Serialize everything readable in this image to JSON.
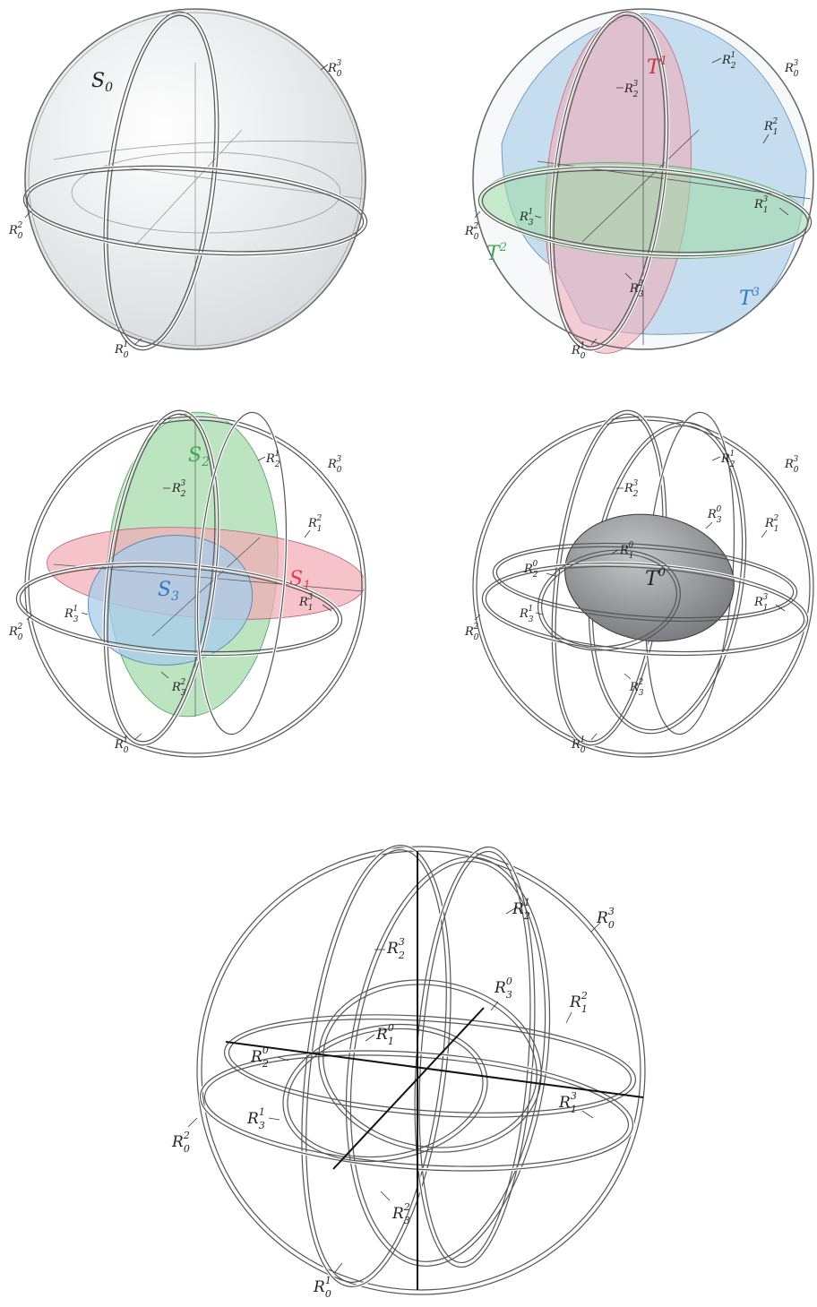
{
  "colors": {
    "red": "#d6404f",
    "green": "#3fa84f",
    "blue": "#2e78c4",
    "sphere_fill": "#e8eaec",
    "dark_ellipsoid": "#8a8d90"
  },
  "panel1": {
    "sphere": {
      "base": "S",
      "sub": "0"
    },
    "labels": [
      {
        "base": "R",
        "sub": "0",
        "sup": "3"
      },
      {
        "base": "R",
        "sub": "0",
        "sup": "2"
      },
      {
        "base": "R",
        "sub": "0",
        "sup": "1"
      }
    ]
  },
  "panel2": {
    "regions": [
      {
        "base": "T",
        "sup": "1"
      },
      {
        "base": "T",
        "sup": "2"
      },
      {
        "base": "T",
        "sup": "3"
      }
    ],
    "labels": [
      {
        "base": "R",
        "sub": "2",
        "sup": "1"
      },
      {
        "base": "R",
        "sub": "0",
        "sup": "3"
      },
      {
        "base": "R",
        "sub": "2",
        "sup": "3"
      },
      {
        "base": "R",
        "sub": "1",
        "sup": "2"
      },
      {
        "base": "R",
        "sub": "1",
        "sup": "3"
      },
      {
        "base": "R",
        "sub": "3",
        "sup": "1"
      },
      {
        "base": "R",
        "sub": "0",
        "sup": "2"
      },
      {
        "base": "R",
        "sub": "3",
        "sup": "2"
      },
      {
        "base": "R",
        "sub": "0",
        "sup": "1"
      }
    ]
  },
  "panel3": {
    "regions": [
      {
        "base": "S",
        "sub": "2"
      },
      {
        "base": "S",
        "sub": "3"
      },
      {
        "base": "S",
        "sub": "1"
      }
    ],
    "labels": [
      {
        "base": "R",
        "sub": "2",
        "sup": "1"
      },
      {
        "base": "R",
        "sub": "0",
        "sup": "3"
      },
      {
        "base": "R",
        "sub": "2",
        "sup": "3"
      },
      {
        "base": "R",
        "sub": "1",
        "sup": "2"
      },
      {
        "base": "R",
        "sub": "1",
        "sup": "3"
      },
      {
        "base": "R",
        "sub": "3",
        "sup": "1"
      },
      {
        "base": "R",
        "sub": "0",
        "sup": "2"
      },
      {
        "base": "R",
        "sub": "3",
        "sup": "2"
      },
      {
        "base": "R",
        "sub": "0",
        "sup": "1"
      }
    ]
  },
  "panel4": {
    "region": {
      "base": "T",
      "sup": "0"
    },
    "labels": [
      {
        "base": "R",
        "sub": "2",
        "sup": "1"
      },
      {
        "base": "R",
        "sub": "0",
        "sup": "3"
      },
      {
        "base": "R",
        "sub": "2",
        "sup": "3"
      },
      {
        "base": "R",
        "sub": "3",
        "sup": "0"
      },
      {
        "base": "R",
        "sub": "1",
        "sup": "2"
      },
      {
        "base": "R",
        "sub": "1",
        "sup": "0"
      },
      {
        "base": "R",
        "sub": "2",
        "sup": "0"
      },
      {
        "base": "R",
        "sub": "1",
        "sup": "3"
      },
      {
        "base": "R",
        "sub": "3",
        "sup": "1"
      },
      {
        "base": "R",
        "sub": "0",
        "sup": "2"
      },
      {
        "base": "R",
        "sub": "3",
        "sup": "2"
      },
      {
        "base": "R",
        "sub": "0",
        "sup": "1"
      }
    ]
  },
  "panel5": {
    "labels": [
      {
        "base": "R",
        "sub": "2",
        "sup": "1"
      },
      {
        "base": "R",
        "sub": "0",
        "sup": "3"
      },
      {
        "base": "R",
        "sub": "2",
        "sup": "3"
      },
      {
        "base": "R",
        "sub": "3",
        "sup": "0"
      },
      {
        "base": "R",
        "sub": "1",
        "sup": "2"
      },
      {
        "base": "R",
        "sub": "1",
        "sup": "0"
      },
      {
        "base": "R",
        "sub": "2",
        "sup": "0"
      },
      {
        "base": "R",
        "sub": "1",
        "sup": "3"
      },
      {
        "base": "R",
        "sub": "3",
        "sup": "1"
      },
      {
        "base": "R",
        "sub": "0",
        "sup": "2"
      },
      {
        "base": "R",
        "sub": "3",
        "sup": "2"
      },
      {
        "base": "R",
        "sub": "0",
        "sup": "1"
      }
    ]
  }
}
